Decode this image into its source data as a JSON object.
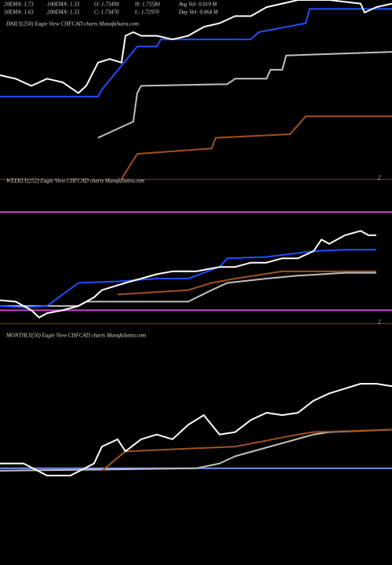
{
  "header": {
    "rows": [
      [
        "20EMA: 1.73",
        "100EMA: 1.33",
        "O: 1.73490",
        "H: 1.73580",
        "Avg Vol: 0.019 M"
      ],
      [
        "30EMA: 1.63",
        "200EMA: 1.33",
        "C: 1.73470",
        "L: 1.72970",
        "Day Vol: 0.064 M"
      ]
    ]
  },
  "chart_data": [
    {
      "type": "line",
      "title": "DAILY(250) Eagle View CHFCAD charts MunafaSutra.com",
      "annotation": "2",
      "xlim": [
        0,
        500
      ],
      "ylim": [
        0,
        100
      ],
      "series": [
        {
          "color": "#c0c0c0",
          "x": [
            125,
            170,
            175,
            180,
            290,
            300,
            340,
            345,
            360,
            365,
            500
          ],
          "values": [
            23,
            32,
            48,
            52,
            53,
            56,
            56,
            61,
            61,
            69,
            71
          ]
        },
        {
          "color": "#a0521e",
          "x": [
            155,
            175,
            270,
            275,
            370,
            390,
            500
          ],
          "values": [
            0,
            14,
            17,
            23,
            25,
            35,
            35
          ]
        },
        {
          "color": "#1f4fff",
          "x": [
            0,
            125,
            130,
            175,
            200,
            205,
            320,
            330,
            390,
            395,
            500
          ],
          "values": [
            46,
            46,
            50,
            74,
            74,
            78,
            78,
            82,
            87,
            95,
            95
          ]
        },
        {
          "color": "#ffffff",
          "x": [
            0,
            20,
            40,
            60,
            80,
            100,
            110,
            125,
            140,
            155,
            160,
            170,
            180,
            200,
            220,
            240,
            260,
            280,
            300,
            320,
            340,
            360,
            380,
            420,
            460,
            465,
            480,
            500
          ],
          "values": [
            58,
            56,
            52,
            56,
            54,
            48,
            52,
            65,
            67,
            65,
            80,
            82,
            80,
            80,
            78,
            80,
            85,
            87,
            91,
            91,
            96,
            98,
            100,
            100,
            98,
            93,
            96,
            98
          ]
        }
      ]
    },
    {
      "type": "line",
      "title": "WEEKLY(252) Eagle View CHFCAD charts MunafaSutra.com",
      "annotation": "2",
      "xlim": [
        0,
        500
      ],
      "ylim": [
        0,
        100
      ],
      "series": [
        {
          "color": "#cc44cc",
          "x": [
            0,
            500
          ],
          "values": [
            77,
            77
          ]
        },
        {
          "color": "#cc44cc",
          "x": [
            0,
            500
          ],
          "values": [
            9,
            9
          ]
        },
        {
          "color": "#c0c0c0",
          "x": [
            0,
            100,
            110,
            240,
            270,
            290,
            340,
            380,
            440,
            480
          ],
          "values": [
            12,
            12,
            15,
            15,
            23,
            28,
            31,
            33,
            35,
            35
          ]
        },
        {
          "color": "#a0521e",
          "x": [
            150,
            240,
            270,
            300,
            360,
            440,
            480
          ],
          "values": [
            20,
            23,
            28,
            31,
            36,
            36,
            36
          ]
        },
        {
          "color": "#1f4fff",
          "x": [
            0,
            30,
            60,
            100,
            150,
            200,
            240,
            280,
            290,
            340,
            400,
            440,
            480
          ],
          "values": [
            12,
            11,
            12,
            28,
            29,
            31,
            31,
            39,
            45,
            46,
            50,
            51,
            51
          ]
        },
        {
          "color": "#ffffff",
          "x": [
            0,
            20,
            40,
            50,
            60,
            80,
            100,
            120,
            130,
            160,
            180,
            200,
            220,
            250,
            280,
            300,
            320,
            340,
            360,
            380,
            400,
            410,
            420,
            440,
            460,
            470,
            480
          ],
          "values": [
            16,
            15,
            9,
            4,
            7,
            9,
            12,
            18,
            23,
            28,
            31,
            34,
            36,
            36,
            39,
            39,
            42,
            42,
            45,
            45,
            50,
            58,
            55,
            61,
            64,
            61,
            61
          ]
        }
      ]
    },
    {
      "type": "line",
      "title": "MONTHLY(50) Eagle View CHFCAD charts MunafaSutra.com",
      "xlim": [
        0,
        500
      ],
      "ylim": [
        0,
        100
      ],
      "series": [
        {
          "color": "#6f8fff",
          "x": [
            0,
            500
          ],
          "values": [
            40,
            40
          ]
        },
        {
          "color": "#c0c0c0",
          "x": [
            0,
            250,
            280,
            300,
            400,
            420,
            500
          ],
          "values": [
            39,
            40,
            42,
            45,
            54,
            55,
            56
          ]
        },
        {
          "color": "#a0521e",
          "x": [
            130,
            160,
            300,
            380,
            400,
            500
          ],
          "values": [
            39,
            47,
            49,
            54,
            55,
            56
          ]
        },
        {
          "color": "#ffffff",
          "x": [
            0,
            30,
            60,
            90,
            120,
            130,
            150,
            160,
            180,
            200,
            220,
            240,
            260,
            280,
            300,
            320,
            340,
            360,
            380,
            400,
            420,
            440,
            460,
            480,
            500
          ],
          "values": [
            42,
            42,
            37,
            37,
            42,
            49,
            52,
            47,
            52,
            54,
            52,
            58,
            62,
            54,
            55,
            60,
            63,
            62,
            63,
            68,
            71,
            73,
            75,
            75,
            74
          ]
        }
      ]
    }
  ]
}
